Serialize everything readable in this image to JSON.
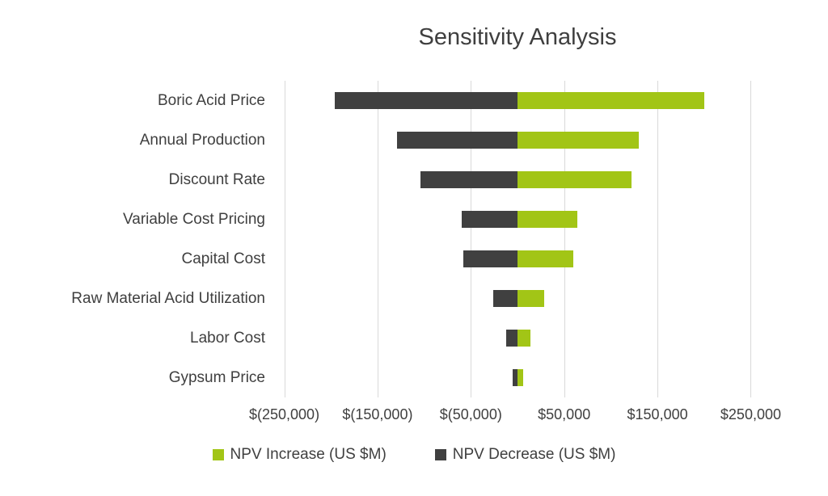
{
  "chart_data": {
    "type": "bar",
    "subtype": "tornado-horizontal",
    "title": "Sensitivity Analysis",
    "categories": [
      "Boric Acid Price",
      "Annual Production",
      "Discount Rate",
      "Variable Cost Pricing",
      "Capital Cost",
      "Raw Material Acid Utilization",
      "Labor Cost",
      "Gypsum Price"
    ],
    "series": [
      {
        "name": "NPV Increase (US $M)",
        "color": "#a2c516",
        "values": [
          200000,
          130000,
          122000,
          64000,
          60000,
          29000,
          14000,
          6000
        ]
      },
      {
        "name": "NPV Decrease (US $M)",
        "color": "#404040",
        "values": [
          -196000,
          -129000,
          -104000,
          -60000,
          -58000,
          -26000,
          -12000,
          -5000
        ]
      }
    ],
    "xlim": [
      -260000,
      260000
    ],
    "ticks": [
      {
        "value": -250000,
        "label": "$(250,000)"
      },
      {
        "value": -150000,
        "label": "$(150,000)"
      },
      {
        "value": -50000,
        "label": "$(50,000)"
      },
      {
        "value": 50000,
        "label": "$50,000"
      },
      {
        "value": 150000,
        "label": "$150,000"
      },
      {
        "value": 250000,
        "label": "$250,000"
      }
    ],
    "grid": "vertical",
    "legend_position": "bottom",
    "gridline_color": "#d9d9d9",
    "text_color": "#3f3f3f"
  }
}
